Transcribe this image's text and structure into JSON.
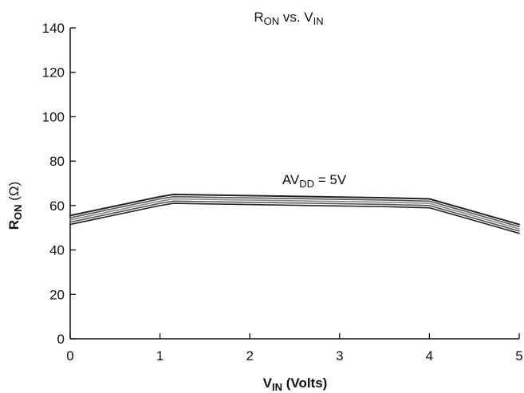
{
  "chart_data": {
    "type": "line",
    "title": "RON vs. VIN",
    "title_parts": {
      "main": "R",
      "main_sub": "ON",
      "middle": " vs. ",
      "second": "V",
      "second_sub": "IN"
    },
    "xlabel": "VIN (Volts)",
    "xlabel_parts": {
      "main": "V",
      "main_sub": "IN",
      "rest": " (Volts)"
    },
    "ylabel": "RON (Ω)",
    "ylabel_parts": {
      "main": "R",
      "main_sub": "ON",
      "rest": " (Ω)"
    },
    "annotation": "AVDD = 5V",
    "annotation_parts": {
      "main": "AV",
      "sub": "DD",
      "rest": " = 5V"
    },
    "x_ticks": [
      "0",
      "1",
      "2",
      "3",
      "4",
      "5"
    ],
    "y_ticks": [
      "0",
      "20",
      "40",
      "60",
      "80",
      "100",
      "120",
      "140"
    ],
    "xlim": [
      0,
      5
    ],
    "ylim": [
      0,
      140
    ],
    "grid": false,
    "legend": "none",
    "colors": {
      "axis": "#111111",
      "curve_dark": "#222222",
      "curve_mid": "#555555",
      "curve_light": "#888888"
    },
    "series": [
      {
        "x": [
          0,
          1,
          1.15,
          3.5,
          4,
          5
        ],
        "values": [
          55.5,
          64.0,
          65.0,
          63.5,
          63.0,
          51.5
        ]
      },
      {
        "x": [
          0,
          1,
          1.15,
          3.5,
          4,
          5
        ],
        "values": [
          54.5,
          63.0,
          64.0,
          62.5,
          62.0,
          50.5
        ]
      },
      {
        "x": [
          0,
          1,
          1.15,
          3.5,
          4,
          5
        ],
        "values": [
          53.5,
          62.0,
          63.0,
          61.5,
          61.0,
          49.5
        ]
      },
      {
        "x": [
          0,
          1,
          1.15,
          3.5,
          4,
          5
        ],
        "values": [
          52.5,
          61.0,
          62.0,
          60.5,
          60.0,
          48.5
        ]
      },
      {
        "x": [
          0,
          1,
          1.15,
          3.5,
          4,
          5
        ],
        "values": [
          51.5,
          60.0,
          61.0,
          59.5,
          59.0,
          47.5
        ]
      }
    ]
  }
}
